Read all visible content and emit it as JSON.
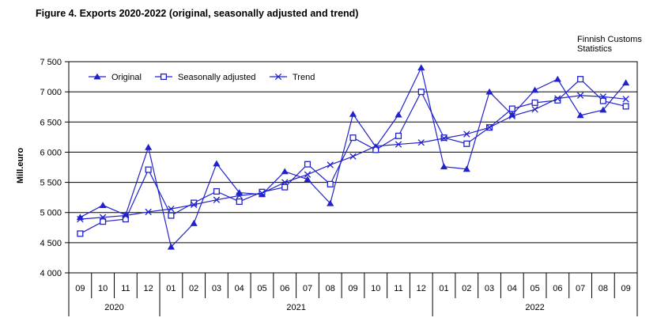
{
  "title": "Figure 4. Exports 2020-2022 (original, seasonally adjusted and trend)",
  "source": {
    "line1": "Finnish Customs",
    "line2": "Statistics"
  },
  "y_axis": {
    "label": "Mill.euro",
    "ticks": [
      {
        "value": 7500,
        "label": "7 500"
      },
      {
        "value": 7000,
        "label": "7 000"
      },
      {
        "value": 6500,
        "label": "6 500"
      },
      {
        "value": 6000,
        "label": "6 000"
      },
      {
        "value": 5500,
        "label": "5 500"
      },
      {
        "value": 5000,
        "label": "5 000"
      },
      {
        "value": 4500,
        "label": "4 500"
      },
      {
        "value": 4000,
        "label": "4 000"
      }
    ]
  },
  "x_axis": {
    "months": [
      "09",
      "10",
      "11",
      "12",
      "01",
      "02",
      "03",
      "04",
      "05",
      "06",
      "07",
      "08",
      "09",
      "10",
      "11",
      "12",
      "01",
      "02",
      "03",
      "04",
      "05",
      "06",
      "07",
      "08",
      "09"
    ],
    "years": [
      {
        "label": "2020",
        "start": 0,
        "span": 4
      },
      {
        "label": "2021",
        "start": 4,
        "span": 12
      },
      {
        "label": "2022",
        "start": 16,
        "span": 9
      }
    ]
  },
  "chart_data": {
    "type": "line",
    "title": "Figure 4. Exports 2020-2022 (original, seasonally adjusted and trend)",
    "xlabel": "",
    "ylabel": "Mill.euro",
    "ylim": [
      4000,
      7500
    ],
    "y_tick_step": 500,
    "grid": "horizontal",
    "legend_position": "top-inside",
    "color": "#2121CD",
    "categories": [
      "2020-09",
      "2020-10",
      "2020-11",
      "2020-12",
      "2021-01",
      "2021-02",
      "2021-03",
      "2021-04",
      "2021-05",
      "2021-06",
      "2021-07",
      "2021-08",
      "2021-09",
      "2021-10",
      "2021-11",
      "2021-12",
      "2022-01",
      "2022-02",
      "2022-03",
      "2022-04",
      "2022-05",
      "2022-06",
      "2022-07",
      "2022-08",
      "2022-09"
    ],
    "series": [
      {
        "name": "Original",
        "marker": "triangle",
        "values": [
          4920,
          5120,
          4960,
          6080,
          4430,
          4820,
          5810,
          5330,
          5300,
          5680,
          5550,
          5150,
          6630,
          6090,
          6620,
          7400,
          5760,
          5720,
          7000,
          6620,
          7030,
          7210,
          6610,
          6700,
          7150
        ]
      },
      {
        "name": "Seasonally adjusted",
        "marker": "square",
        "values": [
          4650,
          4850,
          4890,
          5710,
          4950,
          5160,
          5350,
          5180,
          5340,
          5420,
          5800,
          5470,
          6240,
          6040,
          6270,
          7000,
          6240,
          6140,
          6410,
          6720,
          6820,
          6860,
          7210,
          6850,
          6760
        ]
      },
      {
        "name": "Trend",
        "marker": "x",
        "values": [
          4890,
          4920,
          4950,
          5010,
          5060,
          5130,
          5210,
          5280,
          5320,
          5500,
          5630,
          5790,
          5930,
          6100,
          6130,
          6160,
          6230,
          6300,
          6410,
          6600,
          6710,
          6890,
          6940,
          6920,
          6880
        ]
      }
    ]
  }
}
